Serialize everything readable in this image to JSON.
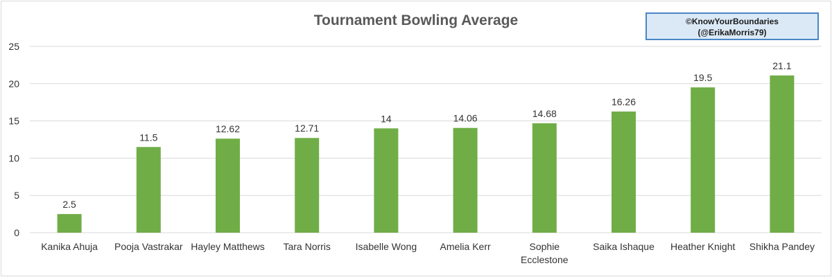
{
  "chart_data": {
    "type": "bar",
    "title": "Tournament Bowling Average",
    "categories": [
      "Kanika Ahuja",
      "Pooja Vastrakar",
      "Hayley Matthews",
      "Tara Norris",
      "Isabelle Wong",
      "Amelia Kerr",
      "Sophie Ecclestone",
      "Saika Ishaque",
      "Heather Knight",
      "Shikha Pandey"
    ],
    "category_lines": [
      [
        "Kanika Ahuja"
      ],
      [
        "Pooja Vastrakar"
      ],
      [
        "Hayley Matthews"
      ],
      [
        "Tara Norris"
      ],
      [
        "Isabelle Wong"
      ],
      [
        "Amelia Kerr"
      ],
      [
        "Sophie",
        "Ecclestone"
      ],
      [
        "Saika Ishaque"
      ],
      [
        "Heather Knight"
      ],
      [
        "Shikha Pandey"
      ]
    ],
    "values": [
      2.5,
      11.5,
      12.62,
      12.71,
      14,
      14.06,
      14.68,
      16.26,
      19.5,
      21.1
    ],
    "data_labels": [
      "2.5",
      "11.5",
      "12.62",
      "12.71",
      "14",
      "14.06",
      "14.68",
      "16.26",
      "19.5",
      "21.1"
    ],
    "ylim": [
      0,
      25
    ],
    "yticks": [
      0,
      5,
      10,
      15,
      20,
      25
    ],
    "grid": true,
    "legend": "none",
    "colors": {
      "bar": "#70ad47",
      "grid": "#d9d9d9",
      "text": "#333333"
    }
  },
  "credit": {
    "line1": "©KnowYourBoundaries",
    "line2": "(@ErikaMorris79)"
  }
}
